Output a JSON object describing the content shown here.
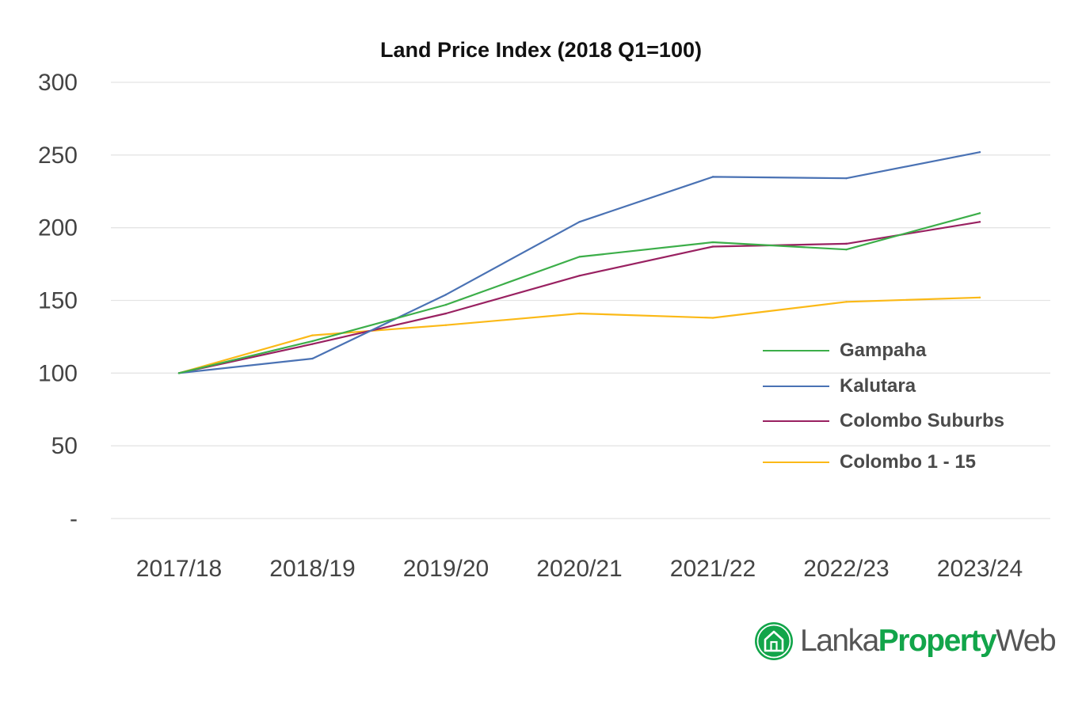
{
  "chart_data": {
    "type": "line",
    "title": "Land Price Index (2018 Q1=100)",
    "xlabel": "",
    "ylabel": "",
    "categories": [
      "2017/18",
      "2018/19",
      "2019/20",
      "2020/21",
      "2021/22",
      "2022/23",
      "2023/24"
    ],
    "yticks": [
      "-",
      "50",
      "100",
      "150",
      "200",
      "250",
      "300"
    ],
    "ylim": [
      0,
      300
    ],
    "grid": true,
    "legend_position": "right",
    "series": [
      {
        "name": "Gampaha",
        "color": "#3cae49",
        "values": [
          100,
          122,
          147,
          180,
          190,
          185,
          210
        ]
      },
      {
        "name": "Kalutara",
        "color": "#4a72b4",
        "values": [
          100,
          110,
          154,
          204,
          235,
          234,
          252
        ]
      },
      {
        "name": "Colombo Suburbs",
        "color": "#992161",
        "values": [
          100,
          120,
          141,
          167,
          187,
          189,
          204
        ]
      },
      {
        "name": "Colombo 1 - 15",
        "color": "#fbb917",
        "values": [
          100,
          126,
          133,
          141,
          138,
          149,
          152
        ]
      }
    ]
  },
  "logo": {
    "text_part1": "Lanka",
    "text_part2": "Property",
    "text_part3": "Web",
    "icon": "house-icon",
    "color": "#12a54a"
  }
}
